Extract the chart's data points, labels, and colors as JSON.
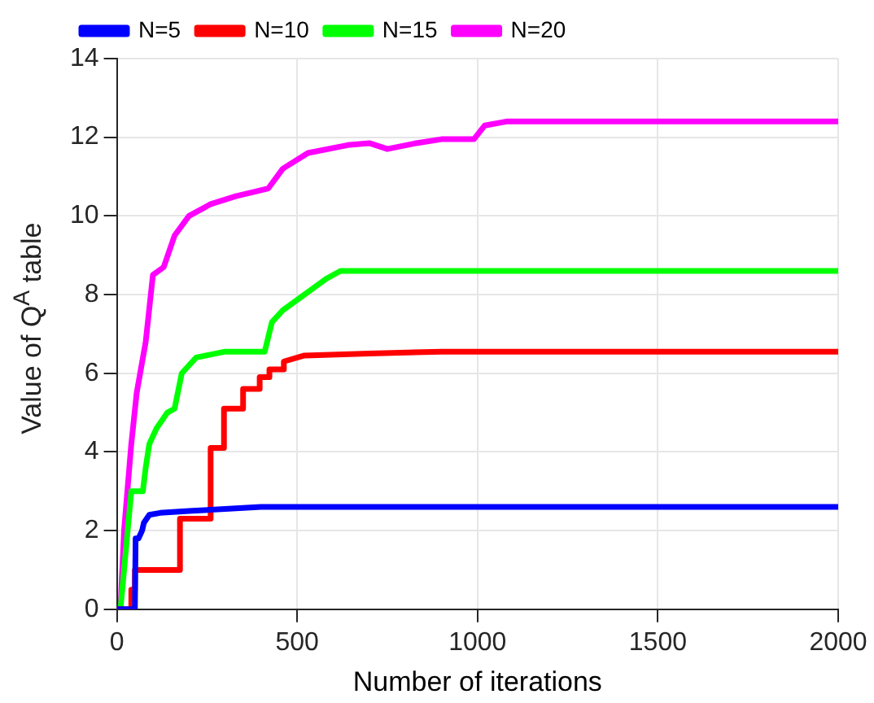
{
  "chart_data": {
    "type": "line",
    "xlabel": "Number of iterations",
    "ylabel": "Value of Q$^{A}$ table",
    "xlim": [
      0,
      2000
    ],
    "ylim": [
      0,
      14
    ],
    "xticks": [
      0,
      500,
      1000,
      1500,
      2000
    ],
    "yticks": [
      0,
      2,
      4,
      6,
      8,
      10,
      12,
      14
    ],
    "grid": true,
    "legend": "top left",
    "marker": "none",
    "line_style": "solid",
    "series": [
      {
        "name": "N=5",
        "color": "#0000ff",
        "x": [
          0,
          50,
          52,
          60,
          70,
          75,
          90,
          120,
          200,
          300,
          400,
          2000
        ],
        "values": [
          0,
          0,
          1.8,
          1.8,
          2.0,
          2.2,
          2.4,
          2.45,
          2.5,
          2.55,
          2.6,
          2.6
        ]
      },
      {
        "name": "N=10",
        "color": "#ff0000",
        "x": [
          0,
          40,
          40,
          50,
          50,
          175,
          175,
          260,
          260,
          297,
          297,
          350,
          350,
          396,
          396,
          423,
          423,
          463,
          463,
          520,
          700,
          900,
          2000
        ],
        "values": [
          0,
          0,
          0.5,
          0.5,
          1.0,
          1.0,
          2.3,
          2.3,
          4.1,
          4.1,
          5.1,
          5.1,
          5.6,
          5.6,
          5.9,
          5.9,
          6.1,
          6.1,
          6.3,
          6.45,
          6.5,
          6.55,
          6.55
        ]
      },
      {
        "name": "N=15",
        "color": "#00ff00",
        "x": [
          0,
          10,
          40,
          72,
          80,
          90,
          110,
          140,
          160,
          180,
          220,
          300,
          410,
          430,
          460,
          520,
          580,
          620,
          2000
        ],
        "values": [
          0,
          0,
          3.0,
          3.0,
          3.6,
          4.2,
          4.6,
          5.0,
          5.1,
          6.0,
          6.4,
          6.55,
          6.55,
          7.3,
          7.6,
          8.0,
          8.4,
          8.6,
          8.6
        ]
      },
      {
        "name": "N=20",
        "color": "#ff00ff",
        "x": [
          0,
          10,
          20,
          40,
          55,
          80,
          100,
          130,
          160,
          200,
          260,
          330,
          420,
          460,
          530,
          640,
          700,
          750,
          830,
          900,
          990,
          1020,
          1080,
          2000
        ],
        "values": [
          0,
          0,
          2.0,
          4.2,
          5.5,
          6.8,
          8.5,
          8.7,
          9.5,
          10.0,
          10.3,
          10.5,
          10.7,
          11.2,
          11.6,
          11.8,
          11.85,
          11.7,
          11.85,
          11.95,
          11.95,
          12.3,
          12.4,
          12.4
        ]
      }
    ]
  }
}
